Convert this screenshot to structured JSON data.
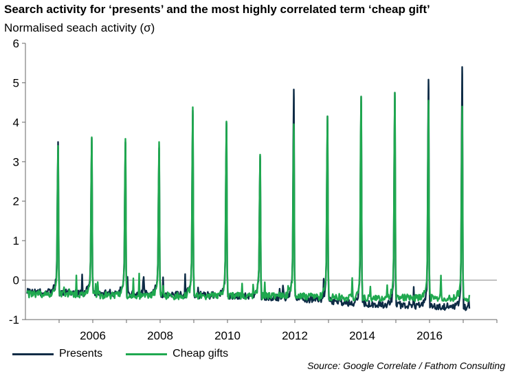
{
  "chart_data": {
    "type": "line",
    "title": "Search activity for ‘presents’ and the most highly correlated term ‘cheap gift’",
    "ylabel": "Normalised seach activity (σ)",
    "xlabel": "",
    "xlim": [
      2004.0,
      2018.0
    ],
    "ylim": [
      -1,
      6
    ],
    "y_ticks": [
      -1,
      0,
      1,
      2,
      3,
      4,
      5,
      6
    ],
    "x_ticks": [
      2006,
      2008,
      2010,
      2012,
      2014,
      2016
    ],
    "grid": false,
    "legend_position": "bottom",
    "zero_line": true,
    "series": [
      {
        "name": "Presents",
        "color": "#0d2b45",
        "peaks": [
          [
            2004.97,
            3.5
          ],
          [
            2005.97,
            3.6
          ],
          [
            2006.97,
            3.5
          ],
          [
            2007.97,
            3.35
          ],
          [
            2008.97,
            4.3
          ],
          [
            2009.97,
            4.0
          ],
          [
            2010.97,
            3.15
          ],
          [
            2011.97,
            4.83
          ],
          [
            2012.97,
            4.15
          ],
          [
            2013.97,
            4.65
          ],
          [
            2014.97,
            4.75
          ],
          [
            2015.97,
            5.08
          ],
          [
            2016.97,
            5.4
          ]
        ],
        "baseline": [
          [
            2004.0,
            -0.3
          ],
          [
            2008.0,
            -0.35
          ],
          [
            2012.0,
            -0.45
          ],
          [
            2014.0,
            -0.6
          ],
          [
            2016.0,
            -0.65
          ],
          [
            2017.2,
            -0.7
          ]
        ]
      },
      {
        "name": "Cheap gifts",
        "color": "#1fa84f",
        "peaks": [
          [
            2004.97,
            3.4
          ],
          [
            2005.97,
            3.62
          ],
          [
            2006.97,
            3.58
          ],
          [
            2007.97,
            3.5
          ],
          [
            2008.97,
            4.38
          ],
          [
            2009.97,
            4.02
          ],
          [
            2010.97,
            3.18
          ],
          [
            2011.97,
            3.95
          ],
          [
            2012.97,
            4.15
          ],
          [
            2013.97,
            4.65
          ],
          [
            2014.97,
            4.75
          ],
          [
            2015.97,
            4.55
          ],
          [
            2016.97,
            4.4
          ]
        ],
        "baseline": [
          [
            2004.0,
            -0.35
          ],
          [
            2008.0,
            -0.4
          ],
          [
            2012.0,
            -0.4
          ],
          [
            2014.0,
            -0.45
          ],
          [
            2016.0,
            -0.45
          ],
          [
            2017.2,
            -0.45
          ]
        ]
      }
    ]
  },
  "source": "Source: Google Correlate / Fathom Consulting"
}
